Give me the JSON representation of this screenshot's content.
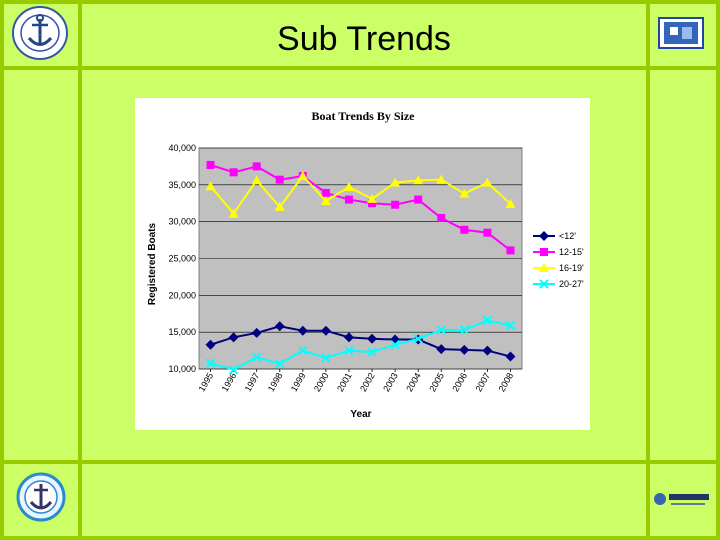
{
  "slide": {
    "title": "Sub Trends",
    "accent_color": "#99cc00",
    "background_color": "#ccff66"
  },
  "logos": {
    "top_left": "marine-seal-icon",
    "top_right": "blue-badge-icon",
    "bottom_left": "anchor-seal-icon",
    "bottom_right": "come-play-logo-icon"
  },
  "chart_data": {
    "type": "line",
    "title": "Boat Trends By Size",
    "xlabel": "Year",
    "ylabel": "Registered Boats",
    "x": [
      "1995",
      "1996",
      "1997",
      "1998",
      "1999",
      "2000",
      "2001",
      "2002",
      "2003",
      "2004",
      "2005",
      "2006",
      "2007",
      "2008"
    ],
    "y_ticks": [
      "10,000",
      "15,000",
      "20,000",
      "25,000",
      "30,000",
      "35,000",
      "40,000"
    ],
    "ylim": [
      10000,
      40000
    ],
    "grid": true,
    "legend_position": "right",
    "plot_background": "#c0c0c0",
    "series": [
      {
        "name": "<12'",
        "color": "#000080",
        "marker": "diamond",
        "values": [
          13300,
          14300,
          14900,
          15800,
          15200,
          15200,
          14300,
          14100,
          14000,
          14000,
          12700,
          12600,
          12500,
          11700
        ]
      },
      {
        "name": "12-15'",
        "color": "#ff00ff",
        "marker": "square",
        "values": [
          37700,
          36700,
          37500,
          35700,
          36200,
          33900,
          33000,
          32500,
          32300,
          33000,
          30500,
          28900,
          28500,
          26100
        ]
      },
      {
        "name": "16-19'",
        "color": "#ffff00",
        "marker": "triangle",
        "values": [
          34800,
          31100,
          35600,
          32000,
          36200,
          32800,
          34700,
          33100,
          35300,
          35600,
          35700,
          33800,
          35300,
          32400
        ]
      },
      {
        "name": "20-27'",
        "color": "#00ffff",
        "marker": "x",
        "values": [
          10800,
          9900,
          11600,
          10700,
          12500,
          11500,
          12500,
          12300,
          13300,
          14100,
          15300,
          15300,
          16600,
          15900
        ]
      }
    ]
  }
}
